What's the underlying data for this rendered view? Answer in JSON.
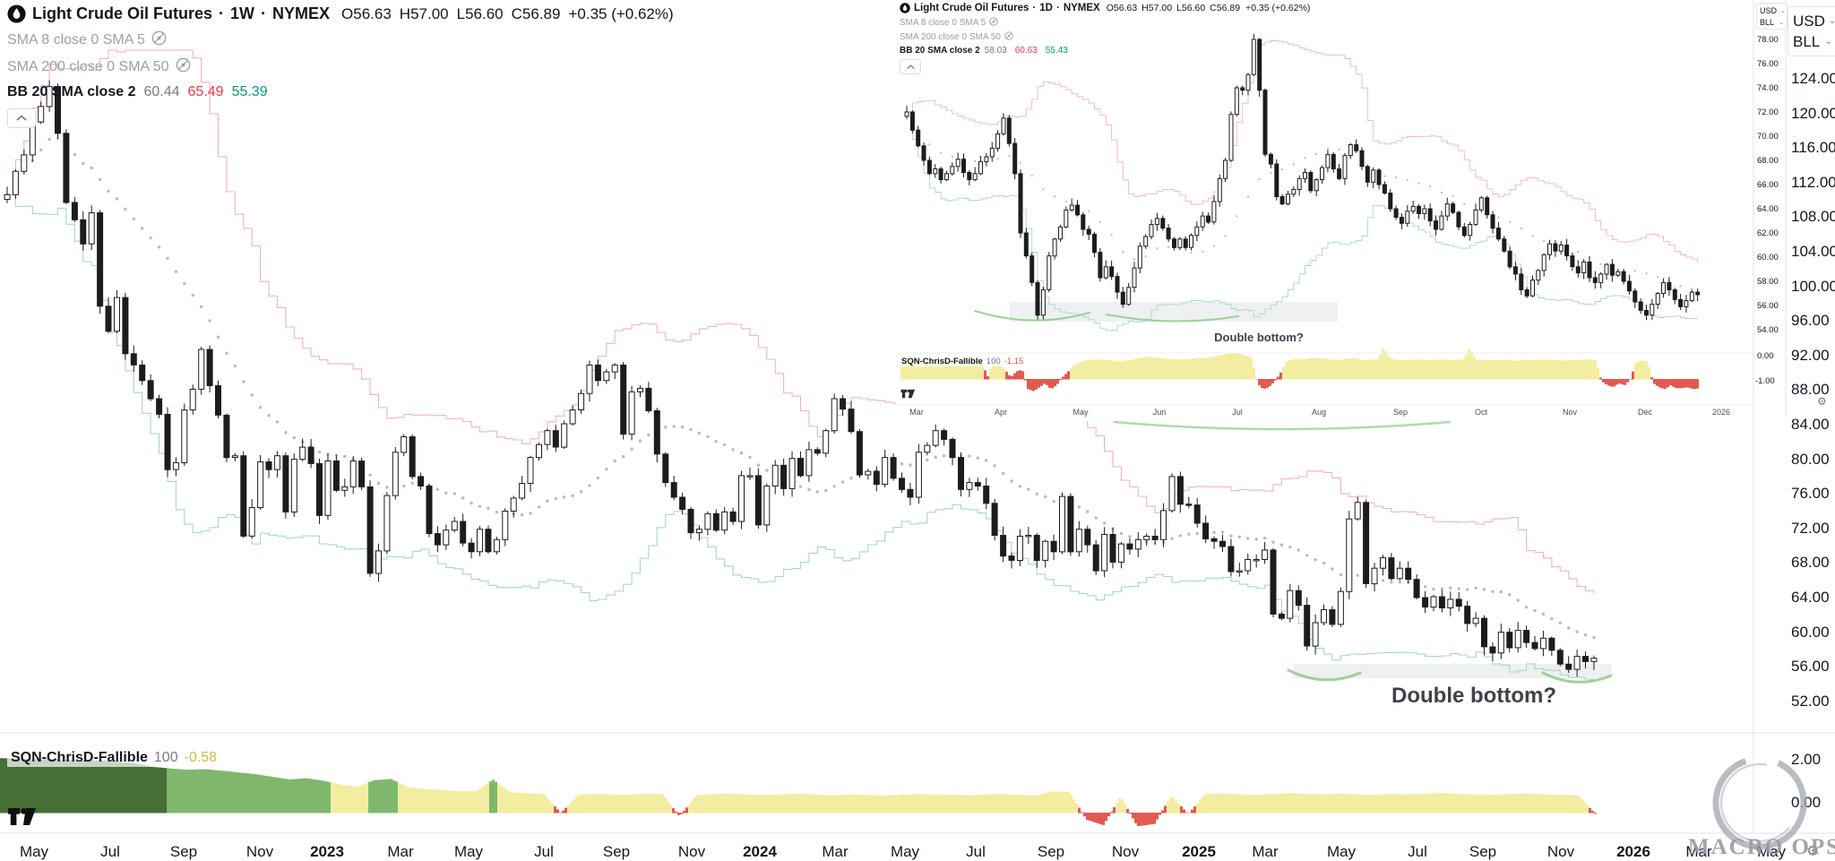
{
  "colors": {
    "candle_up": "#ffffff",
    "candle_down": "#1c1c20",
    "candle_outline": "#1c1c20",
    "bb_upper": "#f2b2c1",
    "bb_lower": "#a6d9c4",
    "bb_mid_dots": "#b7bac2",
    "sqn_dark_green": "#466f36",
    "sqn_green": "#7fb86d",
    "sqn_yellow": "#f3eda1",
    "sqn_red": "#e25a50",
    "value_red": "#f23645",
    "value_green": "#089981",
    "muted_text": "#9aa0a6",
    "text": "#131722",
    "axis_line": "#e0e3eb",
    "zone_gray": "#eef0f2",
    "arc_green": "#8fca8a",
    "sqn_value_yellow": "#cdbd3e"
  },
  "main_chart": {
    "legend": {
      "title": "Light Crude Oil Futures",
      "sep": "·",
      "timeframe": "1W",
      "exchange": "NYMEX",
      "ohlc": [
        {
          "k": "O",
          "v": "56.63"
        },
        {
          "k": "H",
          "v": "57.00"
        },
        {
          "k": "L",
          "v": "56.60"
        },
        {
          "k": "C",
          "v": "56.89"
        }
      ],
      "change": "+0.35 (+0.62%)",
      "rows": [
        {
          "label": "SMA 8 close 0 SMA 5"
        },
        {
          "label": "SMA 200 close 0 SMA 50"
        }
      ],
      "bb": {
        "label": "BB 20 SMA close 2",
        "basis": "60.44",
        "upper": "65.49",
        "lower": "55.39"
      }
    },
    "sqn_legend": {
      "name": "SQN-ChrisD-Fallible",
      "param": "100",
      "value": "-0.58"
    },
    "annotation": "Double bottom?",
    "axes": {
      "currency": "USD",
      "unit": "BLL",
      "price_labels": [
        "124.00",
        "120.00",
        "116.00",
        "112.00",
        "108.00",
        "104.00",
        "100.00",
        "96.00",
        "92.00",
        "88.00",
        "84.00",
        "80.00",
        "76.00",
        "72.00",
        "68.00",
        "64.00",
        "60.00",
        "56.00",
        "52.00"
      ],
      "sqn_labels": [
        "2.00",
        "0.00"
      ],
      "time_labels": [
        "May",
        "Jul",
        "Sep",
        "Nov",
        "2023",
        "Mar",
        "May",
        "Jul",
        "Sep",
        "Nov",
        "2024",
        "Mar",
        "May",
        "Jul",
        "Sep",
        "Nov",
        "2025",
        "Mar",
        "May",
        "Jul",
        "Sep",
        "Nov",
        "2026",
        "Mar",
        "May"
      ],
      "time_x": [
        38,
        123,
        205,
        290,
        365,
        447,
        523,
        607,
        688,
        772,
        848,
        932,
        1010,
        1089,
        1173,
        1256,
        1338,
        1412,
        1497,
        1582,
        1655,
        1742,
        1823,
        1896,
        1977
      ]
    }
  },
  "inset_chart": {
    "legend": {
      "title": "Light Crude Oil Futures",
      "sep": "·",
      "timeframe": "1D",
      "exchange": "NYMEX",
      "ohlc": [
        {
          "k": "O",
          "v": "56.63"
        },
        {
          "k": "H",
          "v": "57.00"
        },
        {
          "k": "L",
          "v": "56.60"
        },
        {
          "k": "C",
          "v": "56.89"
        }
      ],
      "change": "+0.35 (+0.62%)",
      "rows": [
        {
          "label": "SMA 8 close 0 SMA 5"
        },
        {
          "label": "SMA 200 close 0 SMA 50"
        }
      ],
      "bb": {
        "label": "BB 20 SMA close 2",
        "basis": "58.03",
        "upper": "60.63",
        "lower": "55.43"
      }
    },
    "sqn_legend": {
      "name": "SQN-ChrisD-Fallible",
      "param": "100",
      "value": "-1.15"
    },
    "annotation": "Double bottom?",
    "axes": {
      "currency": "USD",
      "unit": "BLL",
      "price_labels": [
        "78.00",
        "76.00",
        "74.00",
        "72.00",
        "70.00",
        "68.00",
        "66.00",
        "64.00",
        "62.00",
        "60.00",
        "58.00",
        "56.00",
        "54.00"
      ],
      "sqn_labels": [
        "0.00",
        "-1.00"
      ],
      "time_labels": [
        "Mar",
        "Apr",
        "May",
        "Jun",
        "Jul",
        "Aug",
        "Sep",
        "Oct",
        "Nov",
        "Dec",
        "2026"
      ],
      "time_x": [
        1023,
        1117,
        1206,
        1294,
        1381,
        1472,
        1563,
        1653,
        1752,
        1836,
        1921
      ]
    }
  },
  "watermark": {
    "line1": "MACRO OPS"
  },
  "chart_data": [
    {
      "id": "main-weekly",
      "type": "candlestick",
      "title": "Light Crude Oil Futures · 1W · NYMEX",
      "x_range": "May 2022 - Jan 2026",
      "y_axis": {
        "min": 52,
        "max": 124,
        "step": 4
      },
      "grid": false,
      "overlays": {
        "bollinger_period": 20,
        "bollinger_mult": 2,
        "basis_style": "dotted"
      },
      "closes": [
        110.5,
        113.2,
        115.1,
        118.9,
        120.7,
        123.0,
        117.6,
        109.6,
        107.6,
        104.8,
        108.4,
        97.6,
        94.7,
        98.6,
        92.1,
        90.8,
        89.0,
        86.9,
        85.1,
        78.7,
        79.5,
        85.6,
        88.0,
        92.6,
        88.4,
        85.0,
        80.1,
        80.3,
        71.0,
        74.3,
        79.6,
        78.7,
        80.3,
        73.8,
        79.9,
        81.3,
        79.4,
        73.4,
        79.7,
        76.3,
        76.7,
        79.7,
        76.7,
        66.7,
        69.3,
        75.7,
        80.7,
        82.5,
        77.9,
        76.8,
        71.3,
        70.0,
        71.7,
        72.7,
        70.2,
        69.2,
        71.8,
        69.2,
        70.6,
        73.9,
        75.4,
        77.1,
        80.1,
        81.6,
        83.2,
        81.3,
        84.0,
        85.6,
        87.5,
        90.8,
        89.0,
        90.0,
        90.8,
        82.8,
        87.7,
        88.1,
        85.5,
        80.5,
        77.2,
        75.5,
        74.1,
        71.4,
        71.8,
        73.6,
        71.7,
        73.8,
        72.7,
        78.0,
        78.0,
        72.3,
        76.8,
        79.2,
        76.5,
        80.0,
        78.0,
        81.0,
        80.6,
        83.2,
        86.9,
        85.7,
        83.1,
        78.1,
        78.5,
        77.0,
        80.1,
        77.7,
        76.4,
        75.5,
        80.7,
        81.5,
        83.2,
        82.2,
        80.1,
        76.4,
        77.2,
        76.8,
        74.8,
        71.1,
        68.7,
        68.2,
        71.0,
        71.1,
        68.2,
        70.4,
        69.2,
        75.6,
        69.2,
        71.8,
        70.0,
        67.0,
        71.2,
        68.0,
        70.1,
        69.5,
        70.6,
        71.0,
        70.6,
        73.96,
        77.9,
        74.7,
        74.6,
        72.5,
        70.7,
        70.4,
        69.8,
        66.9,
        67.0,
        68.3,
        68.3,
        69.4,
        61.99,
        61.5,
        64.7,
        63.0,
        58.3,
        61.0,
        62.5,
        60.8,
        64.6,
        73.0,
        74.9,
        65.5,
        67.3,
        68.5,
        66.1,
        67.3,
        66.0,
        63.9,
        62.8,
        64.0,
        62.7,
        63.7,
        62.9,
        60.9,
        61.5,
        58.2,
        57.5,
        59.9,
        58.1,
        60.1,
        58.7,
        58.0,
        59.2,
        57.8,
        56.2,
        55.6,
        57.1,
        56.5,
        56.89
      ],
      "sqn": {
        "name": "SQN-ChrisD-Fallible 100",
        "current": -0.58,
        "y_axis": {
          "labels": [
            2.0,
            0.0
          ]
        },
        "values": [
          1.95,
          1.93,
          1.9,
          1.92,
          1.87,
          1.83,
          1.85,
          1.78,
          1.7,
          1.55,
          1.48,
          1.42,
          1.45,
          1.38,
          1.3,
          1.22,
          1.1,
          0.98,
          1.04,
          0.92,
          0.75,
          0.65,
          0.95,
          1.0,
          0.62,
          0.55,
          0.5,
          0.45,
          0.45,
          0.97,
          0.4,
          0.36,
          0.32,
          -0.55,
          0.28,
          0.32,
          0.3,
          0.28,
          0.34,
          0.3,
          -0.7,
          0.26,
          0.32,
          0.34,
          0.3,
          0.28,
          0.3,
          0.34,
          0.3,
          0.26,
          0.3,
          0.28,
          0.25,
          0.28,
          0.32,
          0.3,
          0.28,
          0.26,
          0.3,
          0.33,
          0.28,
          0.25,
          0.44,
          0.4,
          -0.85,
          -1.1,
          0.2,
          -1.15,
          -1.05,
          0.25,
          -0.6,
          0.32,
          0.35,
          0.3,
          0.28,
          0.32,
          0.36,
          0.32,
          0.3,
          0.34,
          0.3,
          0.28,
          0.32,
          0.3,
          0.34,
          0.36,
          0.32,
          0.3,
          0.28,
          0.32,
          0.35,
          0.3,
          0.28,
          0.26,
          -0.58
        ]
      }
    },
    {
      "id": "inset-daily",
      "type": "candlestick",
      "title": "Light Crude Oil Futures · 1D · NYMEX",
      "x_range": "Mar 2025 - Jan 2026",
      "y_axis": {
        "min": 54,
        "max": 78,
        "step": 2
      },
      "grid": false,
      "overlays": {
        "bollinger_period": 20,
        "bollinger_mult": 2,
        "basis_style": "dotted"
      },
      "closes": [
        72.0,
        70.5,
        69.2,
        68.0,
        66.9,
        67.3,
        66.4,
        66.9,
        67.5,
        68.1,
        67.0,
        66.4,
        66.9,
        67.9,
        68.3,
        69.0,
        70.2,
        71.5,
        69.4,
        66.9,
        62.0,
        60.1,
        57.9,
        55.2,
        57.3,
        60.1,
        61.5,
        62.5,
        63.9,
        64.3,
        63.5,
        62.3,
        61.9,
        60.4,
        58.3,
        59.2,
        58.4,
        57.1,
        56.1,
        57.5,
        59.1,
        60.9,
        61.7,
        62.7,
        63.2,
        62.4,
        61.5,
        60.8,
        61.5,
        60.8,
        61.8,
        62.5,
        63.4,
        62.9,
        64.6,
        66.5,
        68.0,
        71.8,
        74.0,
        73.8,
        75.1,
        78.0,
        73.8,
        68.5,
        67.7,
        65.0,
        64.4,
        65.2,
        65.6,
        66.5,
        67.0,
        65.5,
        66.4,
        67.4,
        68.5,
        67.3,
        66.5,
        68.4,
        69.3,
        68.8,
        67.5,
        66.2,
        67.2,
        66.0,
        65.3,
        64.0,
        63.3,
        62.8,
        63.8,
        64.2,
        63.6,
        64.0,
        63.0,
        62.3,
        63.4,
        64.4,
        63.7,
        62.5,
        61.8,
        62.7,
        63.9,
        64.9,
        63.5,
        62.4,
        61.5,
        60.5,
        59.2,
        58.6,
        57.3,
        56.8,
        58.1,
        58.9,
        60.2,
        61.1,
        60.5,
        61.0,
        60.1,
        59.2,
        58.7,
        59.6,
        58.3,
        57.9,
        58.6,
        59.4,
        58.5,
        58.8,
        58.0,
        57.2,
        56.3,
        55.6,
        55.2,
        56.1,
        57.0,
        57.9,
        57.3,
        56.5,
        55.9,
        56.4,
        57.1,
        56.89
      ],
      "sqn": {
        "name": "SQN-ChrisD-Fallible 100",
        "current": -1.15,
        "y_axis": {
          "labels": [
            0.0,
            -1.0
          ]
        },
        "values": [
          0.35,
          0.4,
          0.38,
          0.42,
          0.4,
          0.36,
          0.34,
          0.38,
          0.3,
          0.28,
          0.32,
          0.36,
          0.4,
          0.44,
          0.1,
          -0.55,
          0.3,
          0.1,
          -0.2,
          -0.6,
          -0.3,
          -0.2,
          -1.2,
          -1.3,
          -1.1,
          -0.9,
          -1.2,
          -1.0,
          -0.6,
          -0.3,
          0.0,
          0.15,
          0.25,
          0.3,
          0.3,
          0.32,
          0.28,
          0.25,
          0.2,
          0.25,
          0.3,
          0.35,
          0.4,
          0.45,
          0.42,
          0.38,
          0.35,
          0.3,
          0.34,
          0.3,
          0.32,
          0.36,
          0.4,
          0.38,
          0.45,
          0.5,
          0.55,
          0.6,
          0.65,
          0.6,
          0.5,
          0.4,
          -0.9,
          -1.2,
          -1.1,
          -0.8,
          -0.4,
          0.2,
          0.3,
          0.34,
          0.3,
          0.36,
          0.4,
          0.38,
          0.34,
          0.3,
          0.28,
          0.32,
          0.36,
          0.4,
          0.3,
          0.28,
          0.32,
          0.3,
          0.92,
          0.4,
          0.3,
          0.28,
          0.26,
          0.3,
          0.32,
          0.3,
          0.28,
          0.3,
          0.34,
          0.3,
          0.26,
          0.3,
          0.34,
          0.9,
          0.28,
          0.26,
          0.3,
          0.28,
          0.26,
          0.3,
          0.28,
          0.24,
          0.28,
          0.3,
          0.26,
          0.3,
          0.32,
          0.3,
          0.28,
          0.26,
          0.25,
          0.3,
          0.28,
          0.32,
          0.3,
          0.26,
          -0.8,
          -1.0,
          -1.1,
          -0.9,
          -1.0,
          -0.7,
          0.2,
          0.25,
          0.2,
          -0.9,
          -1.1,
          -1.2,
          -1.0,
          -1.15,
          -1.15,
          -1.1,
          -1.2,
          -1.15
        ]
      }
    }
  ]
}
